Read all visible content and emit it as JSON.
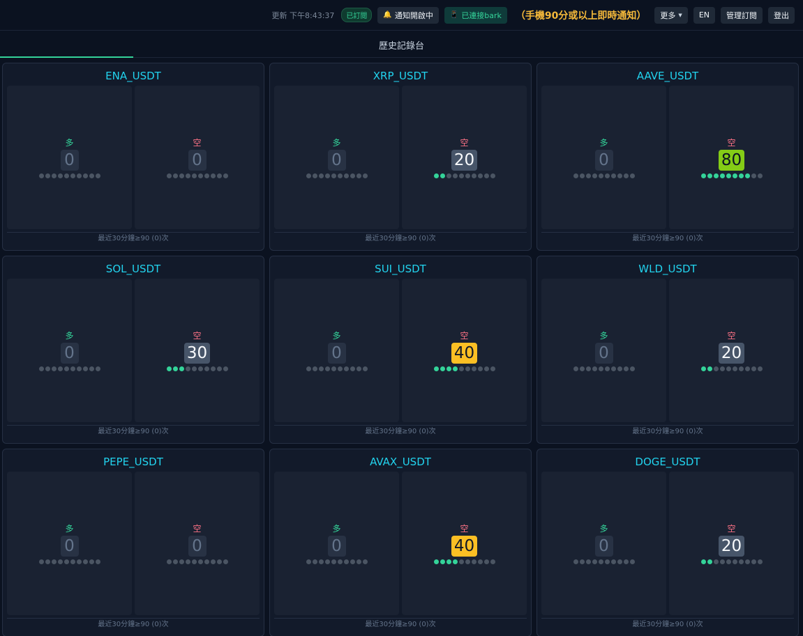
{
  "header": {
    "updated": "更新 下午8:43:37",
    "subscribed": "已訂閱",
    "notify": "通知開啟中",
    "bark": "已連接bark",
    "notice": "（手機90分或以上即時通知）",
    "more": "更多",
    "lang": "EN",
    "manage": "管理訂閱",
    "logout": "登出"
  },
  "tabs": {
    "history": "歷史記錄台"
  },
  "labels": {
    "long": "多",
    "short": "空"
  },
  "footer_text": "最近30分鐘≥90 (0)次",
  "cards": [
    {
      "symbol": "ENA_USDT",
      "long": 0,
      "short": 0
    },
    {
      "symbol": "XRP_USDT",
      "long": 0,
      "short": 20
    },
    {
      "symbol": "AAVE_USDT",
      "long": 0,
      "short": 80
    },
    {
      "symbol": "SOL_USDT",
      "long": 0,
      "short": 30
    },
    {
      "symbol": "SUI_USDT",
      "long": 0,
      "short": 40
    },
    {
      "symbol": "WLD_USDT",
      "long": 0,
      "short": 20
    },
    {
      "symbol": "PEPE_USDT",
      "long": 0,
      "short": 0
    },
    {
      "symbol": "AVAX_USDT",
      "long": 0,
      "short": 40
    },
    {
      "symbol": "DOGE_USDT",
      "long": 0,
      "short": 20
    }
  ],
  "colors": {
    "accent": "#34d399",
    "title": "#22d3ee",
    "notice": "#f5b93a",
    "score_mid": "#475569",
    "score_warn": "#fbbf24",
    "score_high": "#84cc16"
  },
  "icons": {
    "notify": "bell-icon",
    "bark": "phone-icon",
    "more": "caret-down-icon"
  }
}
